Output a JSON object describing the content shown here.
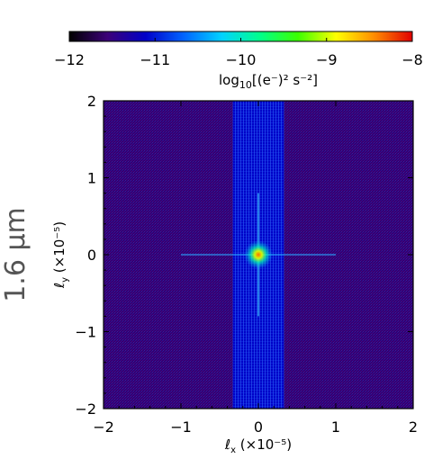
{
  "chart_data": {
    "type": "heatmap",
    "side_label": "1.6 μm",
    "colorbar": {
      "range": [
        -12,
        -8
      ],
      "ticks": [
        -12,
        -11,
        -10,
        -9,
        -8
      ],
      "tick_labels": [
        "−12",
        "−11",
        "−10",
        "−9",
        "−8"
      ],
      "label": {
        "main": "log",
        "sub": "10",
        "rest": "[(e⁻)² s⁻²]"
      }
    },
    "xlabel": {
      "sym": "ℓ",
      "sub": "x",
      "rest": " (×10⁻⁵)"
    },
    "ylabel": {
      "sym": "ℓ",
      "sub": "y",
      "rest": " (×10⁻⁵)"
    },
    "xlim": [
      -2,
      2
    ],
    "ylim": [
      -2,
      2
    ],
    "xticks": [
      -2,
      -1,
      0,
      1,
      2
    ],
    "yticks": [
      -2,
      -1,
      0,
      1,
      2
    ],
    "xtick_labels": [
      "−2",
      "−1",
      "0",
      "1",
      "2"
    ],
    "ytick_labels": [
      "−2",
      "−1",
      "0",
      "1",
      "2"
    ],
    "features": {
      "background_value": -11.6,
      "vertical_band_halfwidth": 0.33,
      "vertical_band_value": -11.1,
      "peak_value": -9.0,
      "peak_position": [
        0,
        0
      ]
    },
    "colors": {
      "colormap": [
        "#000000",
        "#3c0078",
        "#0000c8",
        "#0064ff",
        "#00d2ff",
        "#00ff8c",
        "#3cff00",
        "#ffff00",
        "#ff8c00",
        "#e10000"
      ]
    }
  }
}
